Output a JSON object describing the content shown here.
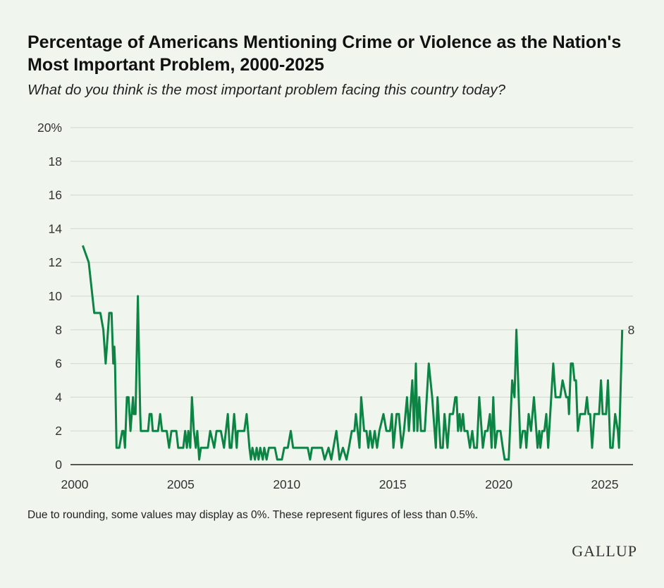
{
  "title": "Percentage of Americans Mentioning Crime or Violence as the Nation's Most Important Problem, 2000-2025",
  "subtitle": "What do you think is the most important problem facing this country today?",
  "note": "Due to rounding, some values may display as 0%. These represent figures of less than 0.5%.",
  "logo": "GALLUP",
  "chart_data": {
    "type": "line",
    "title": "Percentage of Americans Mentioning Crime or Violence as the Nation's Most Important Problem, 2000-2025",
    "xlabel": "",
    "ylabel": "",
    "xlim": [
      2000,
      2025.9
    ],
    "ylim": [
      0,
      20
    ],
    "x_ticks": [
      "2000",
      "2005",
      "2010",
      "2015",
      "2020",
      "2025"
    ],
    "y_ticks": [
      "0",
      "2",
      "4",
      "6",
      "8",
      "10",
      "12",
      "14",
      "16",
      "18",
      "20%"
    ],
    "grid": true,
    "color": "#0b8444",
    "end_label": "8",
    "points": [
      [
        2000.38,
        13
      ],
      [
        2000.66,
        12
      ],
      [
        2000.92,
        9
      ],
      [
        2001.21,
        9
      ],
      [
        2001.35,
        8
      ],
      [
        2001.46,
        6
      ],
      [
        2001.63,
        9
      ],
      [
        2001.74,
        9
      ],
      [
        2001.82,
        6
      ],
      [
        2001.87,
        7
      ],
      [
        2001.9,
        6
      ],
      [
        2001.97,
        1
      ],
      [
        2002.1,
        1
      ],
      [
        2002.24,
        2
      ],
      [
        2002.3,
        2
      ],
      [
        2002.37,
        1
      ],
      [
        2002.46,
        4
      ],
      [
        2002.54,
        4
      ],
      [
        2002.63,
        2
      ],
      [
        2002.75,
        4
      ],
      [
        2002.79,
        3
      ],
      [
        2002.87,
        3
      ],
      [
        2002.98,
        10
      ],
      [
        2003.09,
        3
      ],
      [
        2003.12,
        2
      ],
      [
        2003.46,
        2
      ],
      [
        2003.53,
        3
      ],
      [
        2003.62,
        3
      ],
      [
        2003.68,
        2
      ],
      [
        2003.93,
        2
      ],
      [
        2004.03,
        3
      ],
      [
        2004.12,
        2
      ],
      [
        2004.34,
        2
      ],
      [
        2004.45,
        1
      ],
      [
        2004.56,
        2
      ],
      [
        2004.79,
        2
      ],
      [
        2004.88,
        1
      ],
      [
        2005.12,
        1
      ],
      [
        2005.21,
        2
      ],
      [
        2005.29,
        1
      ],
      [
        2005.36,
        2
      ],
      [
        2005.45,
        1
      ],
      [
        2005.53,
        4
      ],
      [
        2005.62,
        2
      ],
      [
        2005.71,
        1
      ],
      [
        2005.78,
        2
      ],
      [
        2005.87,
        0
      ],
      [
        2005.95,
        1
      ],
      [
        2006.28,
        1
      ],
      [
        2006.39,
        2
      ],
      [
        2006.58,
        1
      ],
      [
        2006.69,
        2
      ],
      [
        2006.89,
        2
      ],
      [
        2007.04,
        1
      ],
      [
        2007.22,
        3
      ],
      [
        2007.31,
        1
      ],
      [
        2007.39,
        1
      ],
      [
        2007.52,
        3
      ],
      [
        2007.64,
        1
      ],
      [
        2007.69,
        2
      ],
      [
        2008.0,
        2
      ],
      [
        2008.11,
        3
      ],
      [
        2008.24,
        1
      ],
      [
        2008.31,
        0
      ],
      [
        2008.38,
        1
      ],
      [
        2008.5,
        0
      ],
      [
        2008.58,
        1
      ],
      [
        2008.67,
        0
      ],
      [
        2008.75,
        1
      ],
      [
        2008.87,
        0
      ],
      [
        2008.94,
        1
      ],
      [
        2009.05,
        0
      ],
      [
        2009.16,
        1
      ],
      [
        2009.44,
        1
      ],
      [
        2009.55,
        0
      ],
      [
        2009.77,
        0
      ],
      [
        2009.88,
        1
      ],
      [
        2010.05,
        1
      ],
      [
        2010.19,
        2
      ],
      [
        2010.3,
        1
      ],
      [
        2010.99,
        1
      ],
      [
        2011.1,
        0
      ],
      [
        2011.19,
        1
      ],
      [
        2011.66,
        1
      ],
      [
        2011.79,
        0
      ],
      [
        2011.97,
        1
      ],
      [
        2012.1,
        0
      ],
      [
        2012.34,
        2
      ],
      [
        2012.49,
        0
      ],
      [
        2012.65,
        1
      ],
      [
        2012.82,
        0
      ],
      [
        2012.93,
        1
      ],
      [
        2013.07,
        2
      ],
      [
        2013.19,
        2
      ],
      [
        2013.26,
        3
      ],
      [
        2013.43,
        1
      ],
      [
        2013.51,
        4
      ],
      [
        2013.65,
        2
      ],
      [
        2013.76,
        2
      ],
      [
        2013.85,
        1
      ],
      [
        2013.93,
        2
      ],
      [
        2014.04,
        1
      ],
      [
        2014.15,
        2
      ],
      [
        2014.26,
        1
      ],
      [
        2014.37,
        2
      ],
      [
        2014.56,
        3
      ],
      [
        2014.7,
        2
      ],
      [
        2014.87,
        2
      ],
      [
        2014.96,
        3
      ],
      [
        2015.03,
        1
      ],
      [
        2015.18,
        3
      ],
      [
        2015.29,
        3
      ],
      [
        2015.42,
        1
      ],
      [
        2015.53,
        2
      ],
      [
        2015.67,
        4
      ],
      [
        2015.76,
        2
      ],
      [
        2015.92,
        5
      ],
      [
        2016.0,
        2
      ],
      [
        2016.09,
        6
      ],
      [
        2016.16,
        2
      ],
      [
        2016.25,
        4
      ],
      [
        2016.33,
        2
      ],
      [
        2016.51,
        2
      ],
      [
        2016.7,
        6
      ],
      [
        2016.86,
        4
      ],
      [
        2017.03,
        1
      ],
      [
        2017.11,
        4
      ],
      [
        2017.25,
        1
      ],
      [
        2017.36,
        1
      ],
      [
        2017.44,
        3
      ],
      [
        2017.58,
        1
      ],
      [
        2017.69,
        3
      ],
      [
        2017.84,
        3
      ],
      [
        2017.95,
        4
      ],
      [
        2018.01,
        4
      ],
      [
        2018.08,
        2
      ],
      [
        2018.15,
        3
      ],
      [
        2018.22,
        2
      ],
      [
        2018.31,
        3
      ],
      [
        2018.38,
        2
      ],
      [
        2018.52,
        2
      ],
      [
        2018.64,
        1
      ],
      [
        2018.75,
        2
      ],
      [
        2018.84,
        1
      ],
      [
        2018.97,
        1
      ],
      [
        2019.08,
        4
      ],
      [
        2019.25,
        1
      ],
      [
        2019.36,
        2
      ],
      [
        2019.47,
        2
      ],
      [
        2019.58,
        3
      ],
      [
        2019.66,
        1
      ],
      [
        2019.74,
        4
      ],
      [
        2019.83,
        1
      ],
      [
        2019.93,
        2
      ],
      [
        2020.08,
        2
      ],
      [
        2020.19,
        1
      ],
      [
        2020.28,
        0
      ],
      [
        2020.47,
        0
      ],
      [
        2020.63,
        5
      ],
      [
        2020.74,
        4
      ],
      [
        2020.83,
        8
      ],
      [
        2021.02,
        1
      ],
      [
        2021.13,
        2
      ],
      [
        2021.24,
        2
      ],
      [
        2021.3,
        1
      ],
      [
        2021.41,
        3
      ],
      [
        2021.52,
        2
      ],
      [
        2021.66,
        4
      ],
      [
        2021.83,
        1
      ],
      [
        2021.91,
        2
      ],
      [
        2021.96,
        1
      ],
      [
        2022.05,
        2
      ],
      [
        2022.15,
        2
      ],
      [
        2022.24,
        3
      ],
      [
        2022.33,
        1
      ],
      [
        2022.57,
        6
      ],
      [
        2022.68,
        4
      ],
      [
        2022.9,
        4
      ],
      [
        2023.01,
        5
      ],
      [
        2023.18,
        4
      ],
      [
        2023.27,
        4
      ],
      [
        2023.31,
        3
      ],
      [
        2023.4,
        6
      ],
      [
        2023.49,
        6
      ],
      [
        2023.57,
        5
      ],
      [
        2023.64,
        5
      ],
      [
        2023.73,
        2
      ],
      [
        2023.84,
        3
      ],
      [
        2024.07,
        3
      ],
      [
        2024.16,
        4
      ],
      [
        2024.23,
        3
      ],
      [
        2024.31,
        3
      ],
      [
        2024.4,
        1
      ],
      [
        2024.51,
        3
      ],
      [
        2024.73,
        3
      ],
      [
        2024.82,
        5
      ],
      [
        2024.9,
        3
      ],
      [
        2025.06,
        3
      ],
      [
        2025.15,
        5
      ],
      [
        2025.26,
        1
      ],
      [
        2025.37,
        1
      ],
      [
        2025.49,
        3
      ],
      [
        2025.62,
        2
      ],
      [
        2025.67,
        1
      ],
      [
        2025.82,
        8
      ]
    ]
  }
}
